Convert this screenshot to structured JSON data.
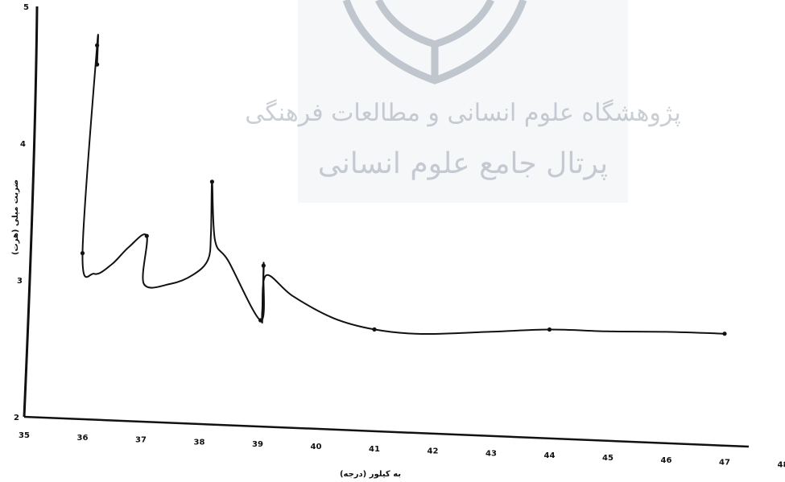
{
  "chart_data": {
    "type": "line",
    "title": "",
    "xlabel": "به کیلور (درجه)",
    "ylabel": "ضربت میلی (هرت)",
    "xlim": [
      35,
      48
    ],
    "ylim": [
      2,
      5
    ],
    "x_ticks": [
      "35",
      "36",
      "37",
      "38",
      "39",
      "40",
      "41",
      "42",
      "43",
      "44",
      "45",
      "46",
      "47",
      "48"
    ],
    "y_ticks": [
      "2",
      "3",
      "4",
      "5"
    ],
    "grid": false,
    "legend": "none",
    "series": [
      {
        "color": "#111111",
        "points": [
          {
            "x": 36.25,
            "y": 4.58
          },
          {
            "x": 36.25,
            "y": 4.72
          },
          {
            "x": 36.0,
            "y": 3.2
          },
          {
            "x": 36.2,
            "y": 3.05
          },
          {
            "x": 36.5,
            "y": 3.12
          },
          {
            "x": 36.8,
            "y": 3.25
          },
          {
            "x": 37.1,
            "y": 3.33
          },
          {
            "x": 37.05,
            "y": 2.98
          },
          {
            "x": 37.5,
            "y": 2.98
          },
          {
            "x": 37.9,
            "y": 3.05
          },
          {
            "x": 38.15,
            "y": 3.16
          },
          {
            "x": 38.2,
            "y": 3.35
          },
          {
            "x": 38.22,
            "y": 3.73
          },
          {
            "x": 38.27,
            "y": 3.3
          },
          {
            "x": 38.5,
            "y": 3.15
          },
          {
            "x": 39.05,
            "y": 2.72
          },
          {
            "x": 39.1,
            "y": 3.05
          },
          {
            "x": 39.1,
            "y": 3.12
          },
          {
            "x": 39.08,
            "y": 2.72
          },
          {
            "x": 39.08,
            "y": 2.8
          },
          {
            "x": 39.15,
            "y": 3.05
          },
          {
            "x": 39.6,
            "y": 2.9
          },
          {
            "x": 40.3,
            "y": 2.74
          },
          {
            "x": 41.0,
            "y": 2.66
          },
          {
            "x": 41.8,
            "y": 2.63
          },
          {
            "x": 43.0,
            "y": 2.65
          },
          {
            "x": 44.0,
            "y": 2.67
          },
          {
            "x": 45.0,
            "y": 2.66
          },
          {
            "x": 46.0,
            "y": 2.66
          },
          {
            "x": 47.0,
            "y": 2.65
          }
        ],
        "markers": [
          {
            "x": 36.25,
            "y": 4.58
          },
          {
            "x": 36.25,
            "y": 4.72
          },
          {
            "x": 36.0,
            "y": 3.2
          },
          {
            "x": 37.1,
            "y": 3.33
          },
          {
            "x": 38.22,
            "y": 3.73
          },
          {
            "x": 39.05,
            "y": 2.72
          },
          {
            "x": 39.1,
            "y": 3.12
          },
          {
            "x": 41.0,
            "y": 2.66
          },
          {
            "x": 44.0,
            "y": 2.67
          },
          {
            "x": 47.0,
            "y": 2.65
          }
        ]
      }
    ]
  },
  "watermark": {
    "line1": "پژوهشگاه علوم انسانی و مطالعات فرهنگی",
    "line2": "پرتال جامع علوم انسانی",
    "color": "#9fa7b3"
  }
}
